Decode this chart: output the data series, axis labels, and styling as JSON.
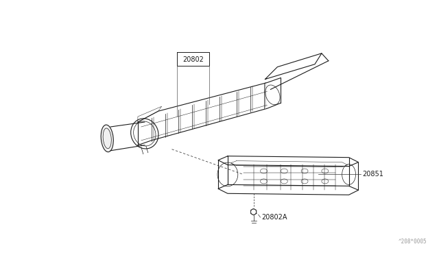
{
  "bg_color": "#ffffff",
  "line_color": "#1a1a1a",
  "label_color": "#1a1a1a",
  "fig_width": 6.4,
  "fig_height": 3.72,
  "dpi": 100,
  "watermark": "^208*0005",
  "label_fontsize": 7.0,
  "lw_main": 0.8,
  "lw_detail": 0.5,
  "lw_thin": 0.35
}
